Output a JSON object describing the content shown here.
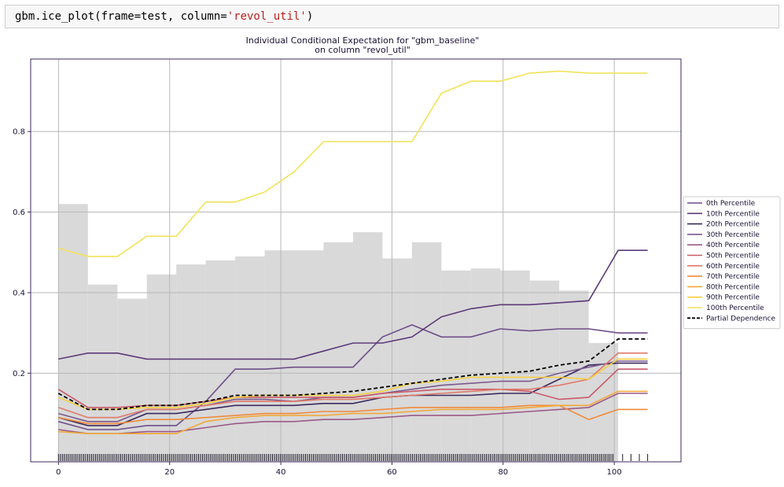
{
  "code": {
    "prefix": "gbm.ice_plot(frame=test, column=",
    "arg": "'revol_util'",
    "suffix": ")"
  },
  "chart_data": {
    "type": "line",
    "title": "Individual Conditional Expectation for \"gbm_baseline\"",
    "subtitle": "on column \"revol_util\"",
    "xlabel": "",
    "ylabel": "",
    "xlim": [
      -5,
      112
    ],
    "ylim": [
      -0.02,
      0.98
    ],
    "xticks": [
      0,
      20,
      40,
      60,
      80,
      100
    ],
    "yticks": [
      0.2,
      0.4,
      0.6,
      0.8
    ],
    "grid": true,
    "legend_position": "right",
    "x": [
      0,
      5.3,
      10.6,
      15.9,
      21.2,
      26.5,
      31.8,
      37.1,
      42.4,
      47.7,
      53.0,
      58.3,
      63.6,
      68.9,
      74.2,
      79.5,
      84.8,
      90.1,
      95.4,
      100.7,
      106.0
    ],
    "series": [
      {
        "name": "0th Percentile",
        "color": "#6e4e8a",
        "dash": false,
        "values": [
          0.08,
          0.06,
          0.06,
          0.07,
          0.07,
          0.13,
          0.21,
          0.21,
          0.215,
          0.215,
          0.215,
          0.29,
          0.32,
          0.29,
          0.29,
          0.31,
          0.305,
          0.31,
          0.31,
          0.3,
          0.3
        ]
      },
      {
        "name": "10th Percentile",
        "color": "#5b3a7a",
        "dash": false,
        "values": [
          0.235,
          0.25,
          0.25,
          0.235,
          0.235,
          0.235,
          0.235,
          0.235,
          0.235,
          0.255,
          0.275,
          0.275,
          0.29,
          0.34,
          0.36,
          0.37,
          0.37,
          0.375,
          0.38,
          0.505,
          0.505
        ]
      },
      {
        "name": "20th Percentile",
        "color": "#3a2a5e",
        "dash": false,
        "values": [
          0.09,
          0.07,
          0.07,
          0.1,
          0.1,
          0.11,
          0.12,
          0.12,
          0.12,
          0.125,
          0.125,
          0.14,
          0.145,
          0.145,
          0.145,
          0.15,
          0.15,
          0.185,
          0.22,
          0.225,
          0.225
        ]
      },
      {
        "name": "30th Percentile",
        "color": "#7a5a8f",
        "dash": false,
        "values": [
          0.1,
          0.08,
          0.08,
          0.11,
          0.11,
          0.12,
          0.135,
          0.135,
          0.13,
          0.14,
          0.14,
          0.15,
          0.16,
          0.17,
          0.175,
          0.18,
          0.18,
          0.2,
          0.215,
          0.23,
          0.23
        ]
      },
      {
        "name": "40th Percentile",
        "color": "#9a5a88",
        "dash": false,
        "values": [
          0.06,
          0.05,
          0.05,
          0.055,
          0.055,
          0.065,
          0.075,
          0.08,
          0.08,
          0.085,
          0.085,
          0.09,
          0.095,
          0.095,
          0.095,
          0.1,
          0.105,
          0.11,
          0.115,
          0.15,
          0.15
        ]
      },
      {
        "name": "50th Percentile",
        "color": "#c95a6a",
        "dash": false,
        "values": [
          0.16,
          0.115,
          0.115,
          0.12,
          0.12,
          0.13,
          0.14,
          0.14,
          0.14,
          0.14,
          0.14,
          0.15,
          0.155,
          0.16,
          0.16,
          0.16,
          0.155,
          0.135,
          0.14,
          0.21,
          0.21
        ]
      },
      {
        "name": "60th Percentile",
        "color": "#e07a6a",
        "dash": false,
        "values": [
          0.115,
          0.09,
          0.09,
          0.11,
          0.11,
          0.12,
          0.13,
          0.13,
          0.13,
          0.135,
          0.135,
          0.14,
          0.145,
          0.15,
          0.155,
          0.16,
          0.16,
          0.17,
          0.185,
          0.25,
          0.25
        ]
      },
      {
        "name": "70th Percentile",
        "color": "#f08a3a",
        "dash": false,
        "values": [
          0.09,
          0.075,
          0.075,
          0.085,
          0.085,
          0.09,
          0.095,
          0.1,
          0.1,
          0.105,
          0.105,
          0.11,
          0.115,
          0.115,
          0.115,
          0.115,
          0.12,
          0.12,
          0.085,
          0.11,
          0.11
        ]
      },
      {
        "name": "80th Percentile",
        "color": "#f2a93a",
        "dash": false,
        "values": [
          0.055,
          0.05,
          0.05,
          0.05,
          0.05,
          0.08,
          0.09,
          0.095,
          0.095,
          0.095,
          0.1,
          0.1,
          0.105,
          0.11,
          0.11,
          0.11,
          0.115,
          0.12,
          0.12,
          0.155,
          0.155
        ]
      },
      {
        "name": "90th Percentile",
        "color": "#f5d040",
        "dash": false,
        "values": [
          0.14,
          0.11,
          0.11,
          0.115,
          0.115,
          0.125,
          0.14,
          0.145,
          0.145,
          0.145,
          0.145,
          0.155,
          0.175,
          0.18,
          0.19,
          0.19,
          0.19,
          0.19,
          0.185,
          0.235,
          0.235
        ]
      },
      {
        "name": "100th Percentile",
        "color": "#f2e25a",
        "dash": false,
        "values": [
          0.51,
          0.49,
          0.49,
          0.54,
          0.54,
          0.625,
          0.625,
          0.65,
          0.7,
          0.775,
          0.775,
          0.775,
          0.775,
          0.895,
          0.925,
          0.925,
          0.945,
          0.95,
          0.945,
          0.945,
          0.945
        ]
      },
      {
        "name": "Partial Dependence",
        "color": "#000000",
        "dash": true,
        "values": [
          0.15,
          0.11,
          0.11,
          0.12,
          0.12,
          0.13,
          0.145,
          0.145,
          0.145,
          0.15,
          0.155,
          0.165,
          0.175,
          0.185,
          0.195,
          0.2,
          0.205,
          0.22,
          0.23,
          0.285,
          0.285
        ]
      }
    ],
    "histogram": {
      "color": "#d9d9d9",
      "bin_edges": [
        0,
        5.3,
        10.6,
        15.9,
        21.2,
        26.5,
        31.8,
        37.1,
        42.4,
        47.7,
        53.0,
        58.3,
        63.6,
        68.9,
        74.2,
        79.5,
        84.8,
        90.1,
        95.4,
        100.7
      ],
      "heights": [
        0.62,
        0.42,
        0.385,
        0.445,
        0.47,
        0.48,
        0.49,
        0.505,
        0.505,
        0.525,
        0.55,
        0.485,
        0.525,
        0.455,
        0.46,
        0.455,
        0.43,
        0.405,
        0.275
      ]
    },
    "rug": {
      "from": 0,
      "to": 100,
      "tail": [
        101.5,
        103,
        104.5,
        106
      ]
    }
  }
}
